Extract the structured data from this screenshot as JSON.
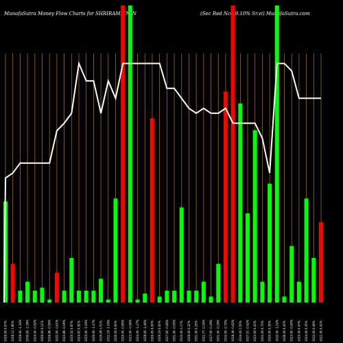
{
  "chart_data": {
    "type": "bar",
    "title_left": "MunafaSutra  Money Flow  Charts for SHRIRAMFIN_N",
    "title_right": "(Sec Red Ncd 9.10% Sr.vi) MunafaSutra.com",
    "grid": true,
    "colors": {
      "background": "#000000",
      "green": "#00ff00",
      "red": "#ff0000",
      "grid": "#c87800",
      "line": "#ffffff"
    },
    "categories": [
      "1029.00 0.67%",
      "1028.12 1.80%",
      "1029.00 -1.34%",
      "1030.00 -1.28%",
      "1024.00 -0.92%",
      "1026.00 0.11%",
      "1026.86 -0.56%",
      "1032.00 -0.61%",
      "1023.86 -0.09%",
      "1025.02 0.87%",
      "1024.81 0.92%",
      "1025.00 -1.00%",
      "1026.00 -1.47%",
      "1035.09 1.01%",
      "1032.19 -1.00%",
      "1026.00 0.00%",
      "1025.00 -0.80%",
      "1023.00 -0.06%",
      "1024.00 -1.27%",
      "1028.00 -1.46%",
      "1026.00 0.00%",
      "1029.19 0.00%",
      "1027.00 -0.46%",
      "1031.00 -0.05%",
      "1033.00 1.17%",
      "1029.00 0.22%",
      "1031.00 0.29%",
      "1022.77 -0.55%",
      "1027.00 -0.29%",
      "1031.50 -0.29%",
      "1032.00 -0.70%",
      "1028.49 -0.62%",
      "1034.00 1.55%",
      "1037.01 -0.62%",
      "1023.00 0.43%",
      "1031.00 0.73%",
      "1020.00 0.39%",
      "1032.00 -1.02%",
      "1036.00 0.43%",
      "1023.00 -0.60%",
      "1025.00 0.47%",
      "1024.00 0.35%",
      "1032.00 0.49%",
      "1021.00 0.41%"
    ],
    "series": [
      {
        "values": [
          34,
          13,
          4,
          7,
          4,
          5,
          1,
          10,
          4,
          15,
          4,
          4,
          4,
          8,
          1,
          35,
          100,
          100,
          1,
          3,
          62,
          2,
          4,
          4,
          32,
          4,
          4,
          7,
          2,
          13,
          71,
          100,
          67,
          30,
          58,
          7,
          40,
          100,
          2,
          19,
          7,
          35,
          15,
          27
        ]
      },
      {
        "values": [
          "g",
          "r",
          "g",
          "g",
          "g",
          "g",
          "g",
          "r",
          "g",
          "g",
          "g",
          "g",
          "g",
          "g",
          "g",
          "g",
          "r",
          "g",
          "g",
          "g",
          "r",
          "g",
          "g",
          "g",
          "g",
          "g",
          "g",
          "g",
          "g",
          "g",
          "r",
          "r",
          "g",
          "g",
          "g",
          "g",
          "g",
          "g",
          "g",
          "g",
          "g",
          "g",
          "g",
          "r"
        ]
      },
      {
        "values": [
          5,
          5.2,
          5.6,
          5.6,
          5.6,
          5.6,
          5.6,
          6.9,
          7.2,
          7.6,
          9.6,
          8.9,
          8.9,
          7.6,
          8.9,
          8.2,
          9.6,
          9.6,
          9.6,
          9.6,
          9.6,
          9.6,
          8.6,
          8.6,
          8.2,
          7.8,
          7.6,
          7.8,
          7.6,
          7.6,
          7.8,
          7.2,
          7.2,
          7.2,
          7.2,
          6.6,
          5.2,
          9.6,
          9.6,
          9.3,
          8.2,
          8.2,
          8.2,
          8.2
        ]
      }
    ]
  }
}
